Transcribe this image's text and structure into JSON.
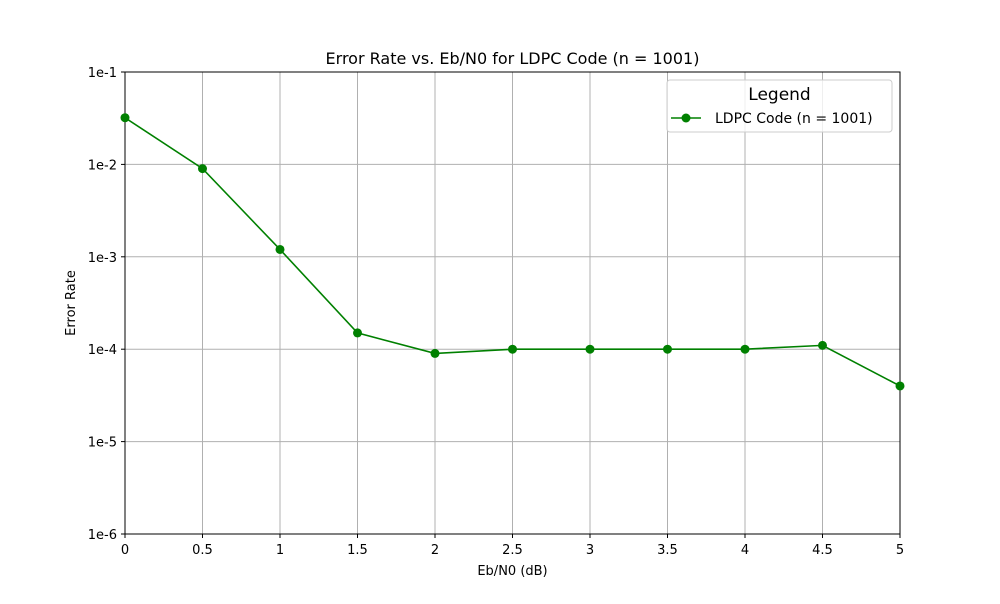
{
  "chart_data": {
    "type": "line",
    "title": "Error Rate vs. Eb/N0 for LDPC Code (n = 1001)",
    "xlabel": "Eb/N0 (dB)",
    "ylabel": "Error Rate",
    "yscale": "log",
    "xlim": [
      0,
      5
    ],
    "ylim": [
      1e-06,
      0.1
    ],
    "grid": true,
    "x_ticks": [
      0,
      0.5,
      1,
      1.5,
      2,
      2.5,
      3,
      3.5,
      4,
      4.5,
      5
    ],
    "x_tick_labels": [
      "0",
      "0.5",
      "1",
      "1.5",
      "2",
      "2.5",
      "3",
      "3.5",
      "4",
      "4.5",
      "5"
    ],
    "y_ticks": [
      0.1,
      0.01,
      0.001,
      0.0001,
      1e-05,
      1e-06
    ],
    "y_tick_labels": [
      "1e-1",
      "1e-2",
      "1e-3",
      "1e-4",
      "1e-5",
      "1e-6"
    ],
    "legend": {
      "title": "Legend",
      "placement": "top-right"
    },
    "series": [
      {
        "name": "LDPC Code (n = 1001)",
        "color": "#008000",
        "marker": "circle",
        "x": [
          0,
          0.5,
          1,
          1.5,
          2,
          2.5,
          3,
          3.5,
          4,
          4.5,
          5
        ],
        "y": [
          0.032,
          0.009,
          0.0012,
          0.00015,
          9e-05,
          0.0001,
          0.0001,
          0.0001,
          0.0001,
          0.00011,
          4e-05
        ]
      }
    ]
  }
}
